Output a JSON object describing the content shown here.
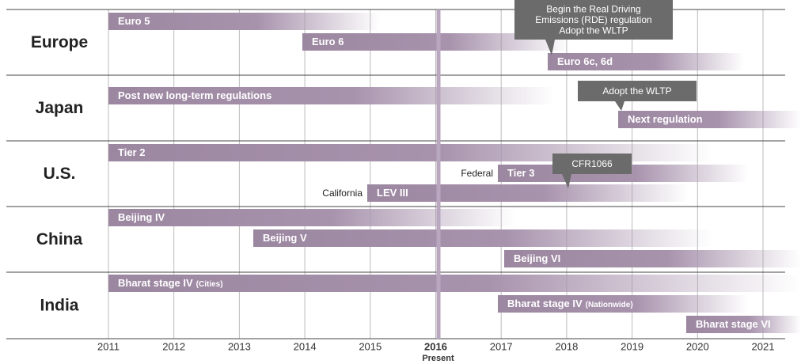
{
  "regions": [
    {
      "name": "Europe",
      "bars": [
        {
          "label": "Euro 5"
        },
        {
          "label": "Euro 6"
        },
        {
          "label": "Euro 6c, 6d"
        }
      ]
    },
    {
      "name": "Japan",
      "bars": [
        {
          "label": "Post new long-term regulations"
        },
        {
          "label": "Next regulation"
        }
      ]
    },
    {
      "name": "U.S.",
      "bars": [
        {
          "label": "Tier 2"
        },
        {
          "label": "Tier 3",
          "prefix": "Federal"
        },
        {
          "label": "LEV III",
          "prefix": "California"
        }
      ]
    },
    {
      "name": "China",
      "bars": [
        {
          "label": "Beijing IV"
        },
        {
          "label": "Beijing V"
        },
        {
          "label": "Beijing VI"
        }
      ]
    },
    {
      "name": "India",
      "bars": [
        {
          "label": "Bharat stage IV",
          "note": "(Cities)"
        },
        {
          "label": "Bharat stage IV",
          "note": "(Nationwide)"
        },
        {
          "label": "Bharat stage VI"
        }
      ]
    }
  ],
  "years": [
    2011,
    2012,
    2013,
    2014,
    2015,
    2016,
    2017,
    2018,
    2019,
    2020,
    2021
  ],
  "present_label": "Present",
  "callouts": [
    {
      "lines": [
        "Begin the Real Driving",
        "Emissions (RDE) regulation",
        "Adopt the WLTP"
      ]
    },
    {
      "lines": [
        "Adopt the WLTP"
      ]
    },
    {
      "lines": [
        "CFR1066"
      ]
    }
  ]
}
